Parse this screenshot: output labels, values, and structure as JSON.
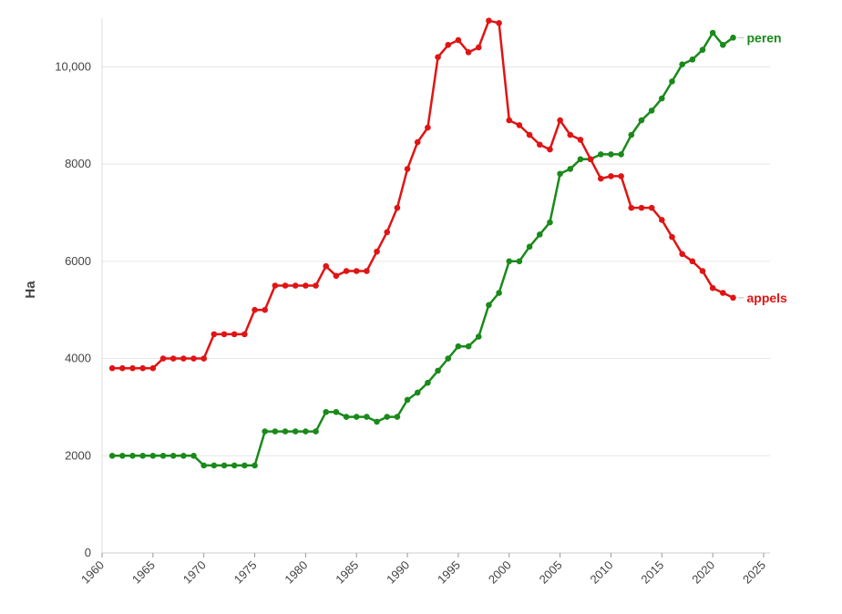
{
  "chart_data": {
    "type": "line",
    "title": "",
    "xlabel": "",
    "ylabel": "Ha",
    "xlim": [
      1960,
      2025
    ],
    "ylim": [
      0,
      11000
    ],
    "x_ticks": [
      1960,
      1965,
      1970,
      1975,
      1980,
      1985,
      1990,
      1995,
      2000,
      2005,
      2010,
      2015,
      2020,
      2025
    ],
    "y_ticks": [
      0,
      2000,
      4000,
      6000,
      8000,
      10000
    ],
    "y_tick_labels": [
      "0",
      "2000",
      "4000",
      "6000",
      "8000",
      "10,000"
    ],
    "grid": "horizontal",
    "legend": "direct labels at line ends (right)",
    "x": [
      1961,
      1962,
      1963,
      1964,
      1965,
      1966,
      1967,
      1968,
      1969,
      1970,
      1971,
      1972,
      1973,
      1974,
      1975,
      1976,
      1977,
      1978,
      1979,
      1980,
      1981,
      1982,
      1983,
      1984,
      1985,
      1986,
      1987,
      1988,
      1989,
      1990,
      1991,
      1992,
      1993,
      1994,
      1995,
      1996,
      1997,
      1998,
      1999,
      2000,
      2001,
      2002,
      2003,
      2004,
      2005,
      2006,
      2007,
      2008,
      2009,
      2010,
      2011,
      2012,
      2013,
      2014,
      2015,
      2016,
      2017,
      2018,
      2019,
      2020,
      2021,
      2022
    ],
    "series": [
      {
        "name": "peren",
        "color": "#1a8a1a",
        "values": [
          2000,
          2000,
          2000,
          2000,
          2000,
          2000,
          2000,
          2000,
          2000,
          1800,
          1800,
          1800,
          1800,
          1800,
          1800,
          2500,
          2500,
          2500,
          2500,
          2500,
          2500,
          2900,
          2900,
          2800,
          2800,
          2800,
          2700,
          2800,
          2800,
          3150,
          3300,
          3500,
          3750,
          4000,
          4250,
          4250,
          4450,
          5100,
          5350,
          6000,
          6000,
          6300,
          6550,
          6800,
          7800,
          7900,
          8100,
          8100,
          8200,
          8200,
          8200,
          8600,
          8900,
          9100,
          9350,
          9700,
          10050,
          10150,
          10350,
          10700,
          10450,
          10600
        ]
      },
      {
        "name": "appels",
        "color": "#e01414",
        "values": [
          3800,
          3800,
          3800,
          3800,
          3800,
          4000,
          4000,
          4000,
          4000,
          4000,
          4500,
          4500,
          4500,
          4500,
          5000,
          5000,
          5500,
          5500,
          5500,
          5500,
          5500,
          5900,
          5700,
          5800,
          5800,
          5800,
          6200,
          6600,
          7100,
          7900,
          8450,
          8750,
          10200,
          10450,
          10550,
          10300,
          10400,
          10950,
          10900,
          8900,
          8800,
          8600,
          8400,
          8300,
          8900,
          8600,
          8500,
          8100,
          7700,
          7750,
          7750,
          7100,
          7100,
          7100,
          6850,
          6500,
          6150,
          6000,
          5800,
          5450,
          5350,
          5250
        ]
      }
    ]
  }
}
